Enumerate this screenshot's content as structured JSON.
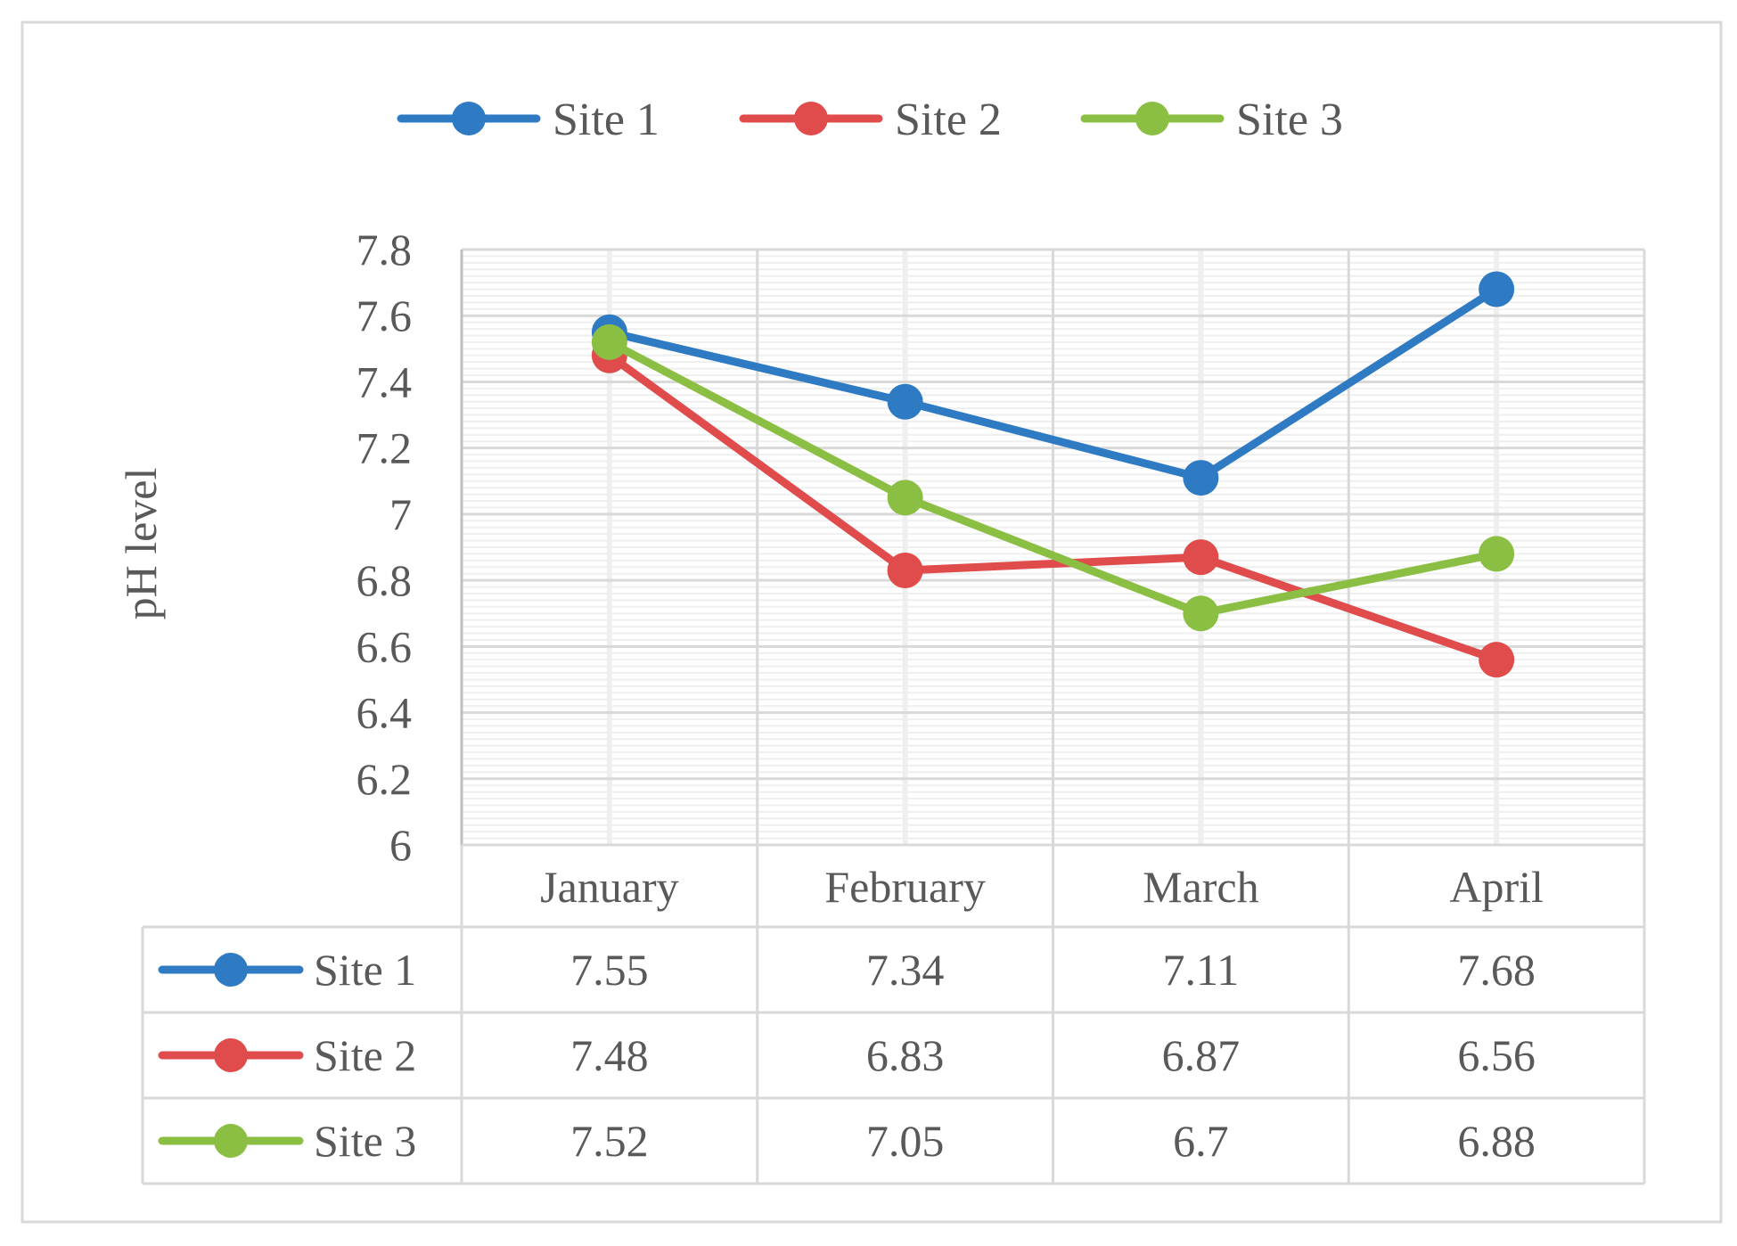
{
  "chart_data": {
    "type": "line",
    "title": "",
    "xlabel": "",
    "ylabel": "pH level",
    "ylim": [
      6,
      7.8
    ],
    "ytick_step": 0.2,
    "ytick_labels": [
      "6",
      "6.2",
      "6.4",
      "6.6",
      "6.8",
      "7",
      "7.2",
      "7.4",
      "7.6",
      "7.8"
    ],
    "grid": true,
    "legend_position": "top-center",
    "data_table": true,
    "categories": [
      "January",
      "February",
      "March",
      "April"
    ],
    "series": [
      {
        "name": "Site 1",
        "color": "#2E7BC4",
        "values": [
          7.55,
          7.34,
          7.11,
          7.68
        ],
        "value_labels": [
          "7.55",
          "7.34",
          "7.11",
          "7.68"
        ]
      },
      {
        "name": "Site 2",
        "color": "#E04B4B",
        "values": [
          7.48,
          6.83,
          6.87,
          6.56
        ],
        "value_labels": [
          "7.48",
          "6.83",
          "6.87",
          "6.56"
        ]
      },
      {
        "name": "Site 3",
        "color": "#8BBF44",
        "values": [
          7.52,
          7.05,
          6.7,
          6.88
        ],
        "value_labels": [
          "7.52",
          "7.05",
          "6.7",
          "6.88"
        ]
      }
    ]
  }
}
